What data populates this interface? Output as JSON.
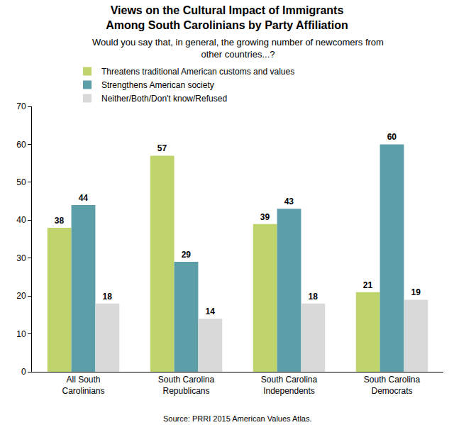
{
  "chart_data": {
    "type": "bar",
    "title": "Views on the Cultural Impact of Immigrants\nAmong South Carolinians by Party Affiliation",
    "subtitle": "Would you say that, in general, the growing number of newcomers from\nother countries...?",
    "source": "Source: PRRI 2015 American Values Atlas.",
    "categories": [
      "All South\nCarolinians",
      "South Carolina\nRepublicans",
      "South Carolina\nIndependents",
      "South Carolina\nDemocrats"
    ],
    "series": [
      {
        "name": "Threatens traditional American customs and values",
        "color": "#bfd46c",
        "values": [
          38,
          57,
          39,
          21
        ]
      },
      {
        "name": "Strengthens American society",
        "color": "#5c9fa9",
        "values": [
          44,
          29,
          43,
          60
        ]
      },
      {
        "name": "Neither/Both/Don't know/Refused",
        "color": "#d9d9d9",
        "values": [
          18,
          14,
          18,
          19
        ]
      }
    ],
    "ylim": [
      0,
      70
    ],
    "yticks": [
      0,
      10,
      20,
      30,
      40,
      50,
      60,
      70
    ],
    "grid": false,
    "legend": "top-left",
    "data_labels": true
  }
}
